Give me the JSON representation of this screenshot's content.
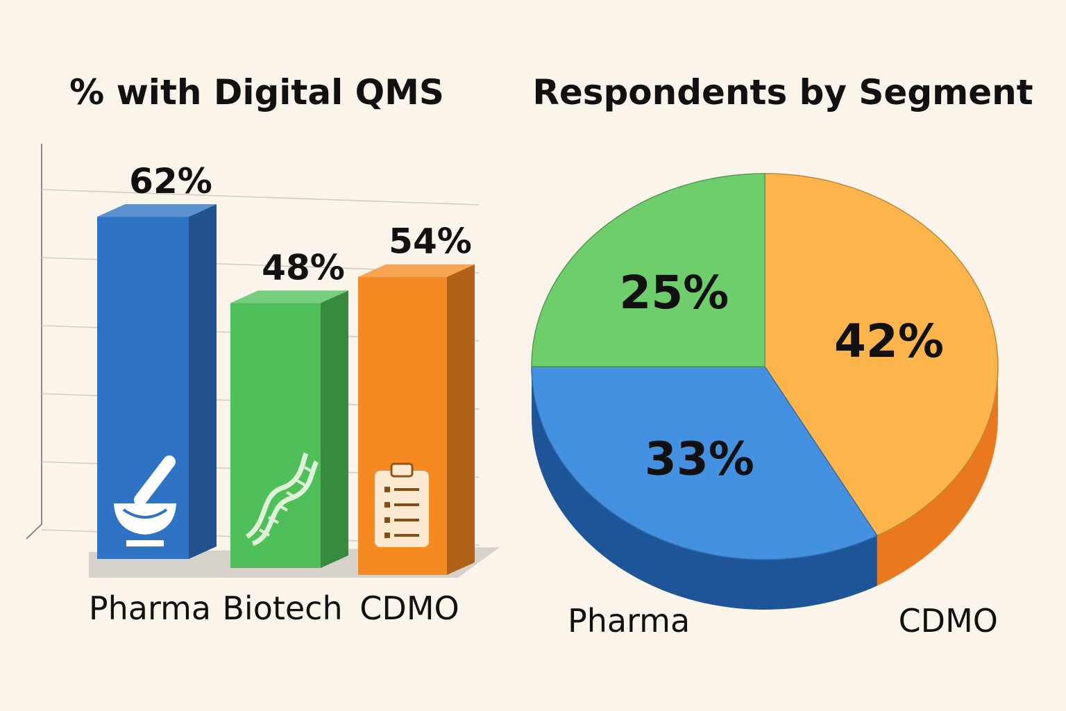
{
  "chart_data": [
    {
      "type": "bar",
      "title": "% with Digital QMS",
      "categories": [
        "Pharma",
        "Biotech",
        "CDMO"
      ],
      "values": [
        62,
        48,
        54
      ],
      "value_labels": [
        "62%",
        "48%",
        "54%"
      ],
      "colors": [
        "#2F73C4",
        "#4FBF5A",
        "#F58A22"
      ],
      "icons": [
        "mortar-pestle-icon",
        "dna-icon",
        "clipboard-icon"
      ],
      "grid": true,
      "xlabel": "",
      "ylabel": ""
    },
    {
      "type": "pie",
      "title": "Respondents by Segment",
      "slices": [
        {
          "name": "CDMO",
          "value": 42,
          "label": "42%",
          "color": "#FDB44B",
          "side_color": "#E9781F"
        },
        {
          "name": "Pharma",
          "value": 33,
          "label": "33%",
          "color": "#4391E0",
          "side_color": "#1E5598"
        },
        {
          "name": "",
          "value": 25,
          "label": "25%",
          "color": "#6DCE6B",
          "side_color": "#3C9A3E"
        }
      ],
      "legend_labels": [
        "Pharma",
        "CDMO"
      ]
    }
  ]
}
